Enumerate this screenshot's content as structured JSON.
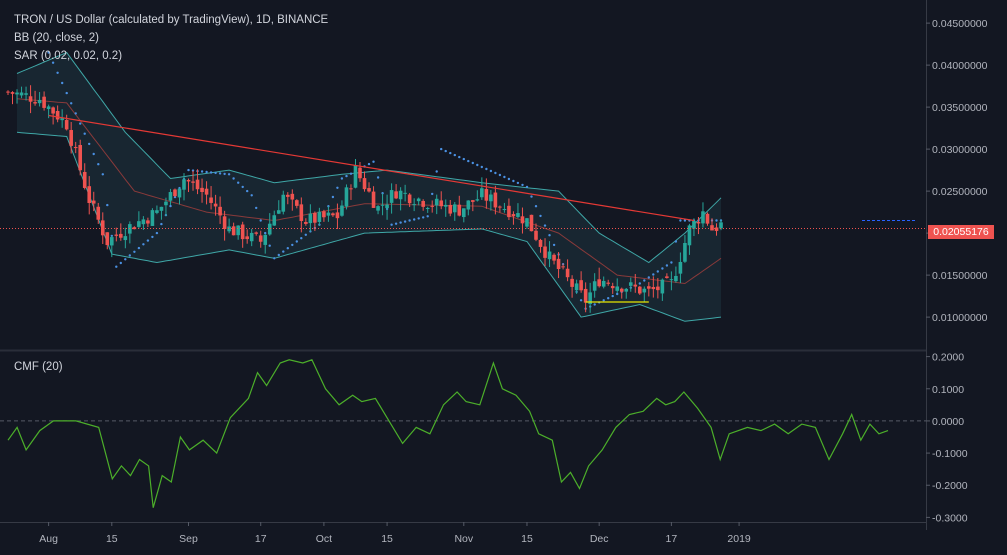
{
  "legend": {
    "title": "TRON / US Dollar (calculated by TradingView), 1D, BINANCE",
    "bb": "BB (20, close, 2)",
    "sar": "SAR (0.02, 0.02, 0.2)",
    "cmf": "CMF (20)"
  },
  "last_price_label": "0.02055176",
  "colors": {
    "background": "#131722",
    "up_candle": "#26a69a",
    "down_candle": "#ef5350",
    "bb_band": "#3fa7a7",
    "bb_basis": "#8a3a3a",
    "sar_dots": "#4a90e2",
    "cmf_line": "#4caf2a",
    "trend_line": "#e53935",
    "support_line": "#e6e600"
  },
  "chart_data": [
    {
      "type": "candlestick",
      "title": "TRON / US Dollar (calculated by TradingView), 1D, BINANCE",
      "x_tick_labels": [
        "Aug",
        "15",
        "Sep",
        "17",
        "Oct",
        "15",
        "Nov",
        "15",
        "Dec",
        "17",
        "2019"
      ],
      "y_tick_labels": [
        "0.04500000",
        "0.04000000",
        "0.03500000",
        "0.03000000",
        "0.02500000",
        "0.02000000",
        "0.01500000",
        "0.01000000"
      ],
      "ylim": [
        0.0075,
        0.0465
      ],
      "last_price": 0.02055176,
      "close_series_key_points": [
        [
          "2018-07-23",
          0.0368
        ],
        [
          "2018-07-30",
          0.036
        ],
        [
          "2018-08-05",
          0.033
        ],
        [
          "2018-08-10",
          0.024
        ],
        [
          "2018-08-14",
          0.019
        ],
        [
          "2018-08-18",
          0.0205
        ],
        [
          "2018-08-25",
          0.0225
        ],
        [
          "2018-08-31",
          0.0265
        ],
        [
          "2018-09-05",
          0.0245
        ],
        [
          "2018-09-10",
          0.0205
        ],
        [
          "2018-09-17",
          0.019
        ],
        [
          "2018-09-22",
          0.0245
        ],
        [
          "2018-09-27",
          0.0215
        ],
        [
          "2018-10-04",
          0.022
        ],
        [
          "2018-10-08",
          0.0275
        ],
        [
          "2018-10-13",
          0.023
        ],
        [
          "2018-10-17",
          0.025
        ],
        [
          "2018-10-25",
          0.0235
        ],
        [
          "2018-10-31",
          0.0228
        ],
        [
          "2018-11-05",
          0.0245
        ],
        [
          "2018-11-11",
          0.0228
        ],
        [
          "2018-11-15",
          0.0215
        ],
        [
          "2018-11-20",
          0.017
        ],
        [
          "2018-11-25",
          0.0138
        ],
        [
          "2018-11-28",
          0.012
        ],
        [
          "2018-12-01",
          0.0145
        ],
        [
          "2018-12-06",
          0.0138
        ],
        [
          "2018-12-12",
          0.013
        ],
        [
          "2018-12-17",
          0.014
        ],
        [
          "2018-12-21",
          0.0205
        ],
        [
          "2018-12-24",
          0.0225
        ],
        [
          "2018-12-26",
          0.0205
        ],
        [
          "2018-12-28",
          0.021
        ]
      ],
      "bollinger_bands": {
        "name": "BB (20, close, 2)",
        "upper_key_points": [
          [
            "2018-07-25",
            0.039
          ],
          [
            "2018-08-05",
            0.0415
          ],
          [
            "2018-08-18",
            0.032
          ],
          [
            "2018-08-28",
            0.0265
          ],
          [
            "2018-09-10",
            0.0275
          ],
          [
            "2018-09-20",
            0.026
          ],
          [
            "2018-10-05",
            0.027
          ],
          [
            "2018-10-15",
            0.0275
          ],
          [
            "2018-11-05",
            0.026
          ],
          [
            "2018-11-22",
            0.025
          ],
          [
            "2018-12-01",
            0.02
          ],
          [
            "2018-12-12",
            0.0165
          ],
          [
            "2018-12-20",
            0.02
          ],
          [
            "2018-12-28",
            0.0242
          ]
        ],
        "basis_key_points": [
          [
            "2018-07-25",
            0.036
          ],
          [
            "2018-08-05",
            0.0355
          ],
          [
            "2018-08-20",
            0.025
          ],
          [
            "2018-09-05",
            0.0225
          ],
          [
            "2018-09-20",
            0.0215
          ],
          [
            "2018-10-10",
            0.0235
          ],
          [
            "2018-11-05",
            0.0232
          ],
          [
            "2018-11-22",
            0.02
          ],
          [
            "2018-12-05",
            0.015
          ],
          [
            "2018-12-20",
            0.014
          ],
          [
            "2018-12-28",
            0.017
          ]
        ],
        "lower_key_points": [
          [
            "2018-07-25",
            0.032
          ],
          [
            "2018-08-05",
            0.0315
          ],
          [
            "2018-08-15",
            0.0175
          ],
          [
            "2018-08-25",
            0.0165
          ],
          [
            "2018-09-10",
            0.018
          ],
          [
            "2018-09-20",
            0.017
          ],
          [
            "2018-10-10",
            0.02
          ],
          [
            "2018-11-05",
            0.0205
          ],
          [
            "2018-11-15",
            0.019
          ],
          [
            "2018-11-27",
            0.01
          ],
          [
            "2018-12-10",
            0.0115
          ],
          [
            "2018-12-20",
            0.0095
          ],
          [
            "2018-12-28",
            0.01
          ]
        ]
      },
      "parabolic_sar": {
        "name": "SAR (0.02, 0.02, 0.2)",
        "key_points": [
          [
            "2018-08-01",
            0.0415
          ],
          [
            "2018-08-13",
            0.027
          ],
          [
            "2018-08-16",
            0.016
          ],
          [
            "2018-08-25",
            0.02
          ],
          [
            "2018-09-01",
            0.0275
          ],
          [
            "2018-09-10",
            0.027
          ],
          [
            "2018-09-15",
            0.0245
          ],
          [
            "2018-09-20",
            0.017
          ],
          [
            "2018-09-30",
            0.021
          ],
          [
            "2018-10-05",
            0.0265
          ],
          [
            "2018-10-12",
            0.0285
          ],
          [
            "2018-10-16",
            0.021
          ],
          [
            "2018-10-24",
            0.022
          ],
          [
            "2018-10-27",
            0.03
          ],
          [
            "2018-11-15",
            0.0255
          ],
          [
            "2018-11-25",
            0.014
          ],
          [
            "2018-11-28",
            0.011
          ],
          [
            "2018-12-10",
            0.014
          ],
          [
            "2018-12-17",
            0.0165
          ],
          [
            "2018-12-19",
            0.0215
          ],
          [
            "2018-12-28",
            0.0215
          ]
        ]
      },
      "trend_line": [
        [
          "2018-08-01",
          0.034
        ],
        [
          "2018-12-22",
          0.0215
        ]
      ],
      "support_line": [
        [
          "2018-11-28",
          0.0118
        ],
        [
          "2018-12-12",
          0.0118
        ]
      ]
    },
    {
      "type": "line",
      "name": "CMF (20)",
      "y_tick_labels": [
        "0.2000",
        "0.1000",
        "0.0000",
        "-0.1000",
        "-0.2000",
        "-0.3000"
      ],
      "ylim": [
        -0.3,
        0.21
      ],
      "key_points": [
        [
          "2018-07-23",
          -0.06
        ],
        [
          "2018-07-25",
          -0.02
        ],
        [
          "2018-07-27",
          -0.09
        ],
        [
          "2018-07-30",
          -0.03
        ],
        [
          "2018-08-02",
          0.0
        ],
        [
          "2018-08-07",
          0.0
        ],
        [
          "2018-08-12",
          -0.02
        ],
        [
          "2018-08-15",
          -0.18
        ],
        [
          "2018-08-17",
          -0.14
        ],
        [
          "2018-08-19",
          -0.17
        ],
        [
          "2018-08-21",
          -0.12
        ],
        [
          "2018-08-23",
          -0.14
        ],
        [
          "2018-08-24",
          -0.27
        ],
        [
          "2018-08-26",
          -0.17
        ],
        [
          "2018-08-28",
          -0.19
        ],
        [
          "2018-08-30",
          -0.05
        ],
        [
          "2018-09-01",
          -0.09
        ],
        [
          "2018-09-04",
          -0.06
        ],
        [
          "2018-09-07",
          -0.1
        ],
        [
          "2018-09-10",
          0.01
        ],
        [
          "2018-09-14",
          0.07
        ],
        [
          "2018-09-16",
          0.15
        ],
        [
          "2018-09-18",
          0.11
        ],
        [
          "2018-09-21",
          0.18
        ],
        [
          "2018-09-23",
          0.19
        ],
        [
          "2018-09-26",
          0.18
        ],
        [
          "2018-09-28",
          0.19
        ],
        [
          "2018-10-01",
          0.1
        ],
        [
          "2018-10-04",
          0.05
        ],
        [
          "2018-10-07",
          0.08
        ],
        [
          "2018-10-09",
          0.06
        ],
        [
          "2018-10-12",
          0.07
        ],
        [
          "2018-10-15",
          0.0
        ],
        [
          "2018-10-18",
          -0.07
        ],
        [
          "2018-10-21",
          -0.02
        ],
        [
          "2018-10-24",
          -0.04
        ],
        [
          "2018-10-27",
          0.05
        ],
        [
          "2018-10-30",
          0.09
        ],
        [
          "2018-11-01",
          0.06
        ],
        [
          "2018-11-04",
          0.05
        ],
        [
          "2018-11-07",
          0.18
        ],
        [
          "2018-11-09",
          0.1
        ],
        [
          "2018-11-12",
          0.08
        ],
        [
          "2018-11-15",
          0.03
        ],
        [
          "2018-11-17",
          -0.04
        ],
        [
          "2018-11-20",
          -0.06
        ],
        [
          "2018-11-22",
          -0.19
        ],
        [
          "2018-11-24",
          -0.16
        ],
        [
          "2018-11-26",
          -0.21
        ],
        [
          "2018-11-28",
          -0.14
        ],
        [
          "2018-12-01",
          -0.09
        ],
        [
          "2018-12-04",
          -0.02
        ],
        [
          "2018-12-07",
          0.02
        ],
        [
          "2018-12-10",
          0.03
        ],
        [
          "2018-12-13",
          0.07
        ],
        [
          "2018-12-15",
          0.05
        ],
        [
          "2018-12-17",
          0.06
        ],
        [
          "2018-12-19",
          0.09
        ],
        [
          "2018-12-22",
          0.04
        ],
        [
          "2018-12-25",
          -0.02
        ],
        [
          "2018-12-27",
          -0.12
        ],
        [
          "2018-12-29",
          -0.04
        ],
        [
          "2019-01-02",
          -0.02
        ],
        [
          "2019-01-05",
          -0.03
        ],
        [
          "2019-01-08",
          -0.01
        ],
        [
          "2019-01-11",
          -0.04
        ],
        [
          "2019-01-14",
          -0.01
        ],
        [
          "2019-01-17",
          -0.02
        ],
        [
          "2019-01-20",
          -0.12
        ],
        [
          "2019-01-23",
          -0.04
        ],
        [
          "2019-01-25",
          0.02
        ],
        [
          "2019-01-27",
          -0.06
        ],
        [
          "2019-01-29",
          -0.01
        ],
        [
          "2019-01-31",
          -0.04
        ],
        [
          "2019-02-02",
          -0.03
        ]
      ]
    }
  ]
}
